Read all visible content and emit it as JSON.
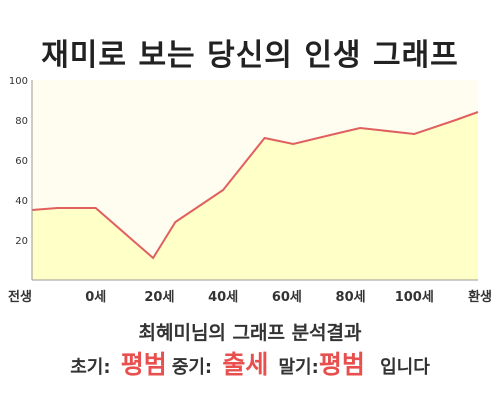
{
  "title": "재미로 보는 당신의 인생 그래프",
  "subtitle": "최혜미님의 그래프 분석결과",
  "result": {
    "early_label": "초기:",
    "early_value": "평범",
    "mid_label": "중기:",
    "mid_value": "출세",
    "late_label": "말기:",
    "late_value": "평범",
    "suffix": "입니다"
  },
  "colors": {
    "line": "#e06060",
    "fill": "#ffffc8",
    "plot_background": "#fffdf0",
    "highlight": "#e8504f"
  },
  "chart_data": {
    "type": "area",
    "title": "재미로 보는 당신의 인생 그래프",
    "xlabel": "",
    "ylabel": "",
    "ylim": [
      0,
      100
    ],
    "xlim": [
      -20,
      120
    ],
    "yticks": [
      20,
      40,
      60,
      80,
      100
    ],
    "yticklabels": [
      "20",
      "40",
      "60",
      "80",
      "100"
    ],
    "xticks": [
      -20,
      0,
      20,
      40,
      60,
      80,
      100,
      120
    ],
    "xticklabels": [
      "전생",
      "0세",
      "20세",
      "40세",
      "60세",
      "80세",
      "100세",
      "환생"
    ],
    "grid": false,
    "x": [
      -20,
      -12,
      0,
      18,
      25,
      40,
      53,
      62,
      75,
      83,
      100,
      113,
      120
    ],
    "y": [
      35,
      36,
      36,
      11,
      29,
      45,
      71,
      68,
      73,
      76,
      73,
      80,
      84
    ]
  }
}
